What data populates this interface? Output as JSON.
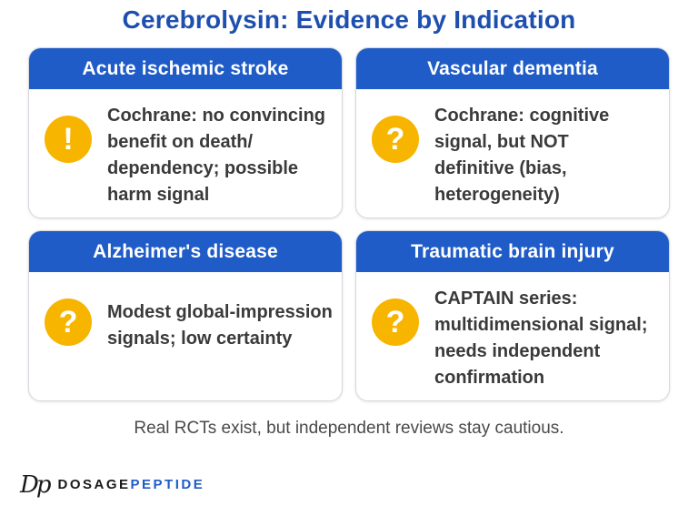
{
  "title": "Cerebrolysin: Evidence by Indication",
  "cards": [
    {
      "heading": "Acute ischemic stroke",
      "icon": "exclamation-icon",
      "symbol": "!",
      "text": "Cochrane: no convincing\nbenefit on death/\ndependency; possible\nharm signal"
    },
    {
      "heading": "Vascular dementia",
      "icon": "question-icon",
      "symbol": "?",
      "text": "Cochrane: cognitive\nsignal, but NOT\ndefinitive (bias,\nheterogeneity)"
    },
    {
      "heading": "Alzheimer's disease",
      "icon": "question-icon",
      "symbol": "?",
      "text": "Modest global-impression\nsignals; low certainty"
    },
    {
      "heading": "Traumatic brain injury",
      "icon": "question-icon",
      "symbol": "?",
      "text": "CAPTAIN series:\nmultidimensional signal;\nneeds independent\nconfirmation"
    }
  ],
  "footnote": "Real RCTs exist, but independent reviews stay cautious.",
  "brand": {
    "mark": "Dp",
    "name_part1": "DOSAGE",
    "name_part2": "PEPTIDE"
  },
  "colors": {
    "title": "#1e4fae",
    "header_bg": "#1f5cc7",
    "badge": "#f7b500"
  }
}
